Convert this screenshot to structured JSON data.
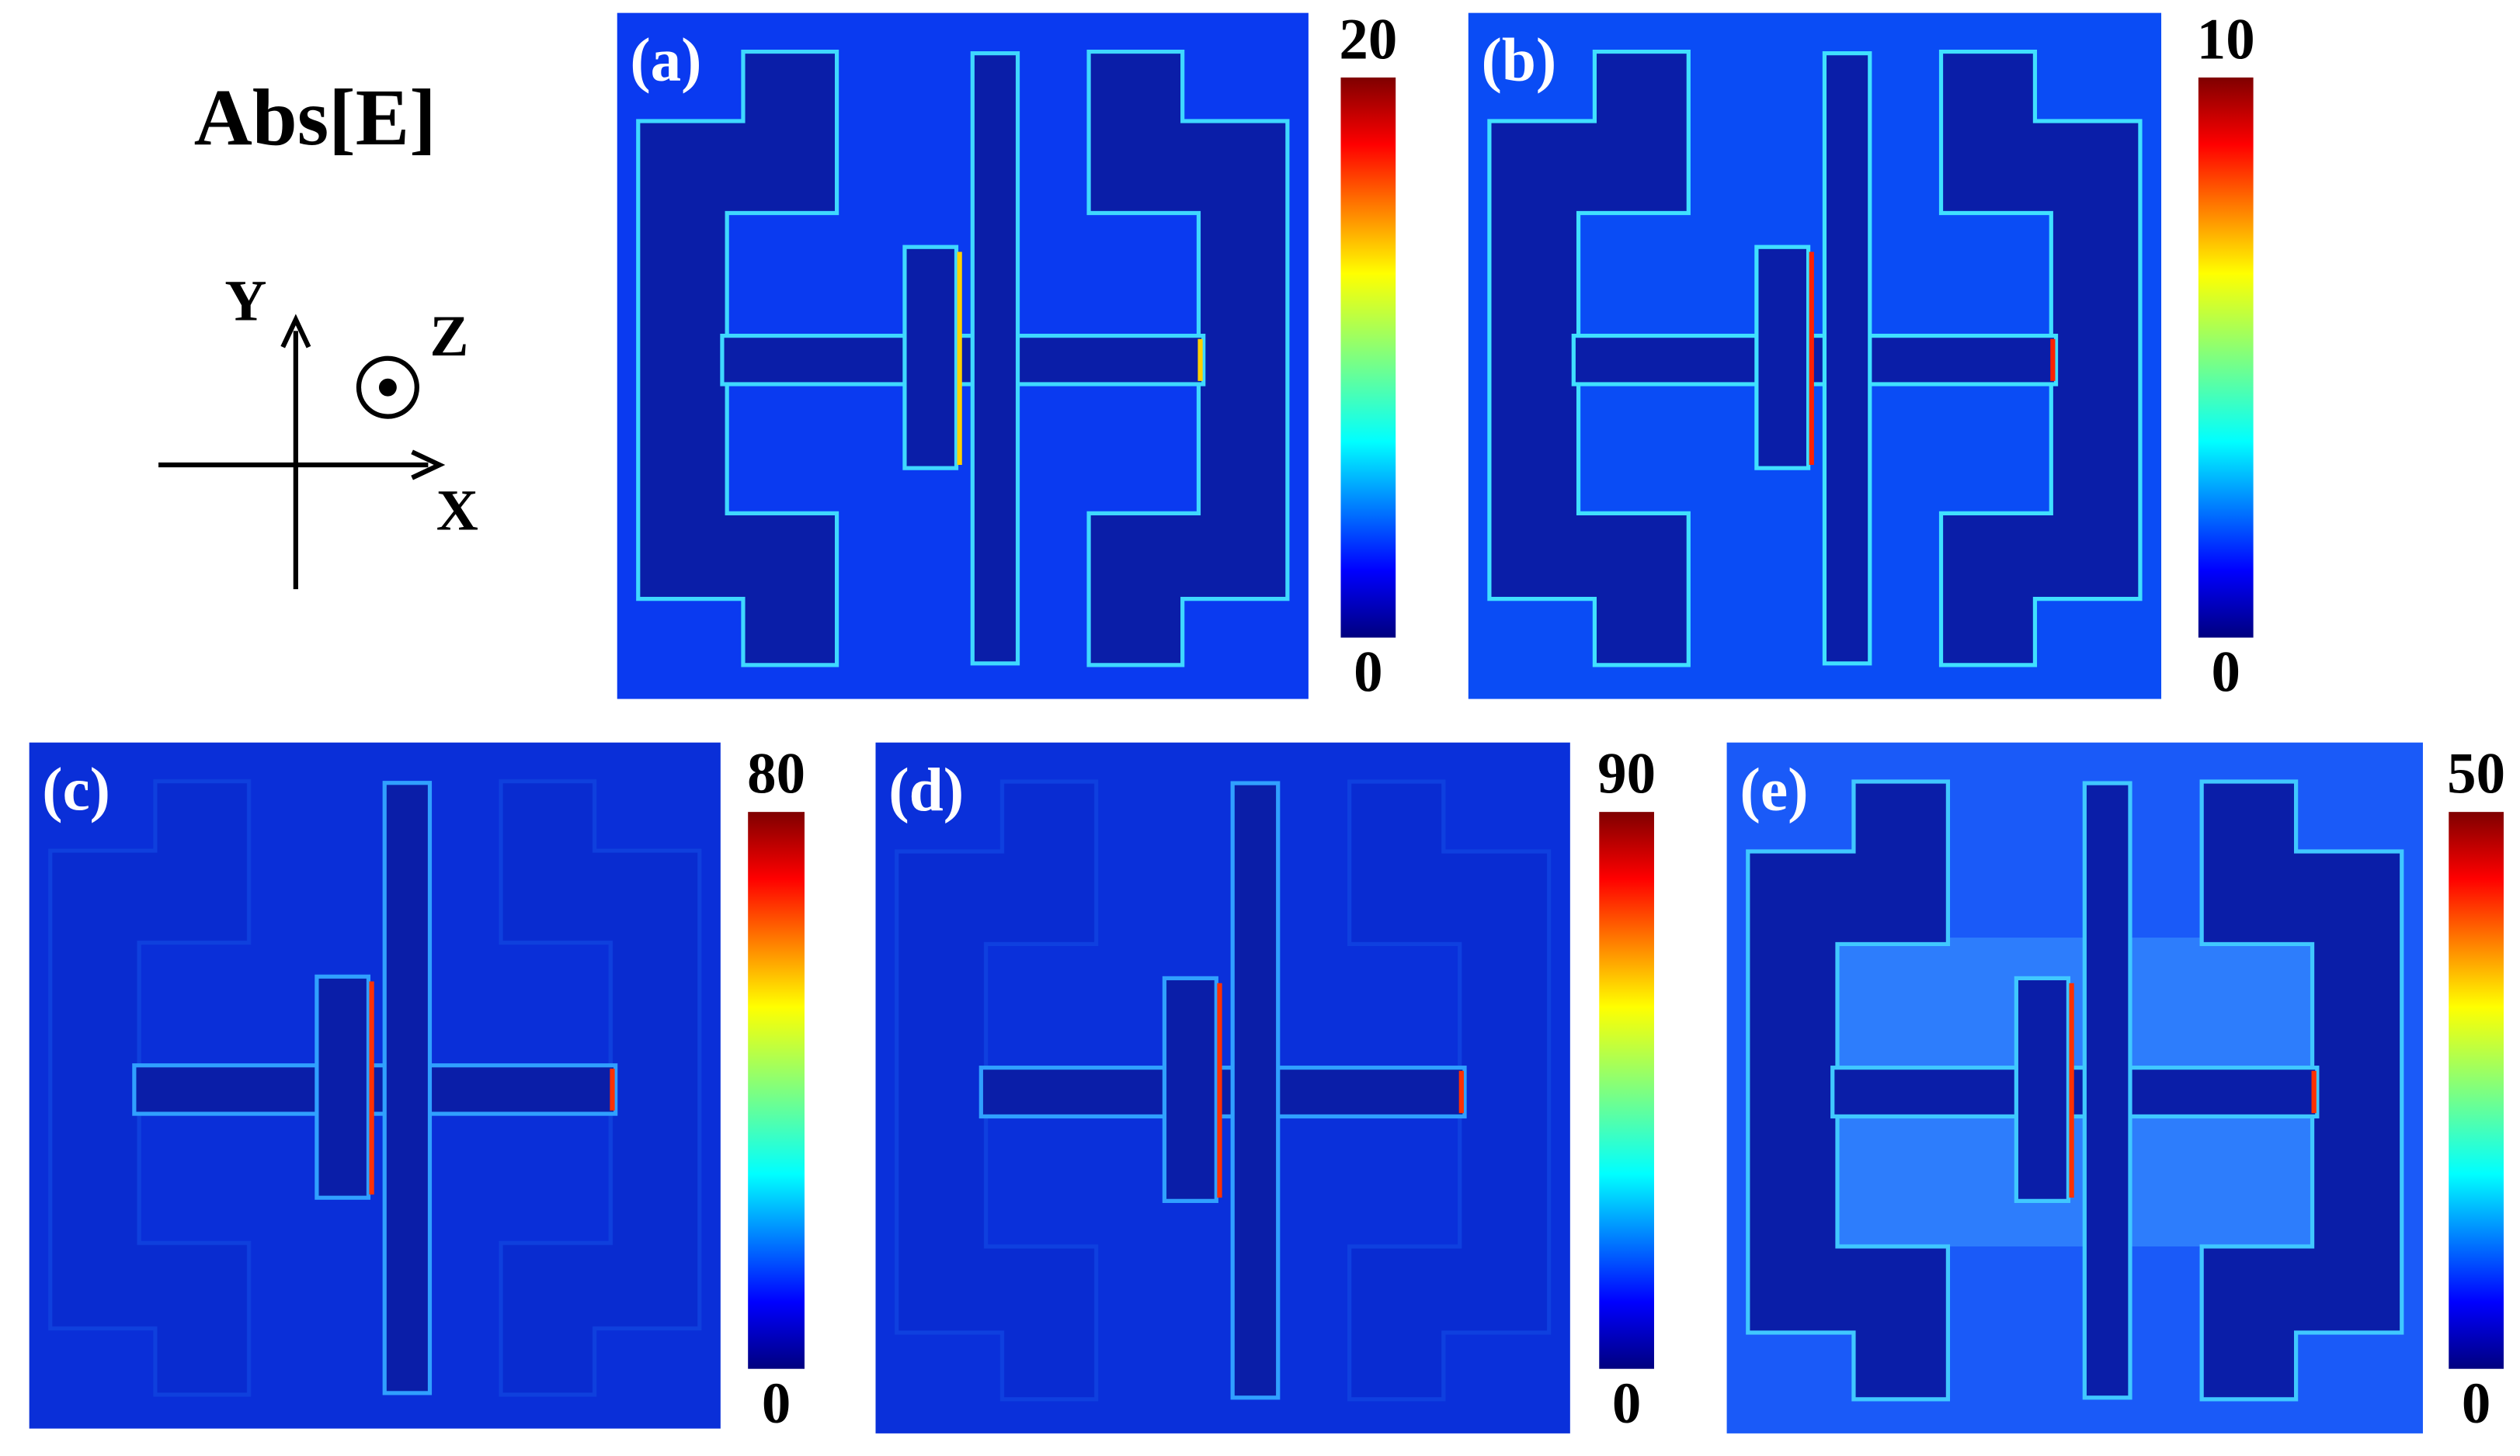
{
  "title": "Abs[E]",
  "axes": {
    "x": "X",
    "y": "Y",
    "z": "Z"
  },
  "panels": [
    {
      "label": "(a)",
      "colorbar_max": 20,
      "colorbar_min": 0
    },
    {
      "label": "(b)",
      "colorbar_max": 10,
      "colorbar_min": 0
    },
    {
      "label": "(c)",
      "colorbar_max": 80,
      "colorbar_min": 0
    },
    {
      "label": "(d)",
      "colorbar_max": 90,
      "colorbar_min": 0
    },
    {
      "label": "(e)",
      "colorbar_max": 50,
      "colorbar_min": 0
    }
  ]
}
